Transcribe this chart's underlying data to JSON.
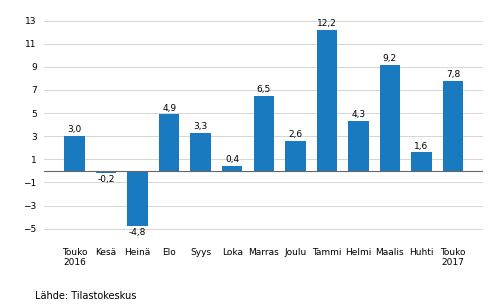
{
  "categories": [
    "Touko\n2016",
    "Kesä",
    "Heinä",
    "Elo",
    "Syys",
    "Loka",
    "Marras",
    "Joulu",
    "Tammi",
    "Helmi",
    "Maalis",
    "Huhti",
    "Touko\n2017"
  ],
  "values": [
    3.0,
    -0.2,
    -4.8,
    4.9,
    3.3,
    0.4,
    6.5,
    2.6,
    12.2,
    4.3,
    9.2,
    1.6,
    7.8
  ],
  "value_labels": [
    "3,0",
    "-0,2",
    "-4,8",
    "4,9",
    "3,3",
    "0,4",
    "6,5",
    "2,6",
    "12,2",
    "4,3",
    "9,2",
    "1,6",
    "7,8"
  ],
  "bar_color": "#1a7abf",
  "ylim": [
    -6,
    14
  ],
  "yticks": [
    -5,
    -3,
    -1,
    1,
    3,
    5,
    7,
    9,
    11,
    13
  ],
  "bar_width": 0.65,
  "source_text": "Lähde: Tilastokeskus",
  "background_color": "#ffffff",
  "grid_color": "#d0d0d0",
  "tick_fontsize": 6.5,
  "value_fontsize": 6.5,
  "source_fontsize": 7.0
}
